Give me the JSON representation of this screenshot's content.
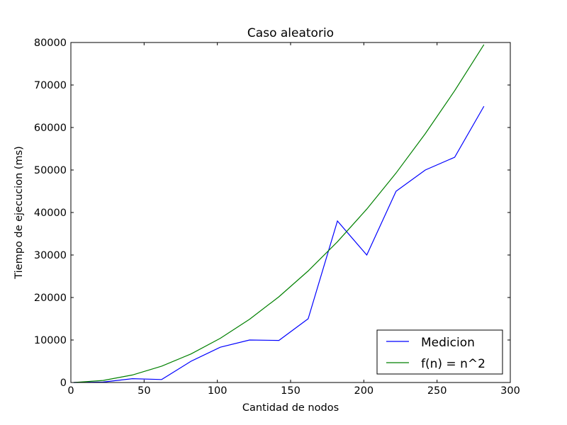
{
  "chart_data": {
    "type": "line",
    "title": "Caso aleatorio",
    "xlabel": "Cantidad de nodos",
    "ylabel": "Tiempo de ejecucion (ms)",
    "xlim": [
      0,
      300
    ],
    "ylim": [
      0,
      80000
    ],
    "xticks": [
      "0",
      "50",
      "100",
      "150",
      "200",
      "250",
      "300"
    ],
    "yticks": [
      "0",
      "10000",
      "20000",
      "30000",
      "40000",
      "50000",
      "60000",
      "70000",
      "80000"
    ],
    "grid": false,
    "legend_position": "lower-right",
    "series": [
      {
        "name": "Medicion",
        "color": "#0000ff",
        "x": [
          2,
          22,
          42,
          62,
          82,
          102,
          122,
          142,
          162,
          182,
          202,
          222,
          242,
          262,
          282
        ],
        "y": [
          0,
          100,
          900,
          700,
          5000,
          8300,
          10000,
          9900,
          15000,
          38000,
          30000,
          45000,
          50000,
          53000,
          65000
        ]
      },
      {
        "name": "f(n) = n^2",
        "color": "#008000",
        "x": [
          2,
          22,
          42,
          62,
          82,
          102,
          122,
          142,
          162,
          182,
          202,
          222,
          242,
          262,
          282
        ],
        "y": [
          4,
          484,
          1764,
          3844,
          6724,
          10404,
          14884,
          20164,
          26244,
          33124,
          40804,
          49284,
          58564,
          68644,
          79524
        ]
      }
    ]
  }
}
